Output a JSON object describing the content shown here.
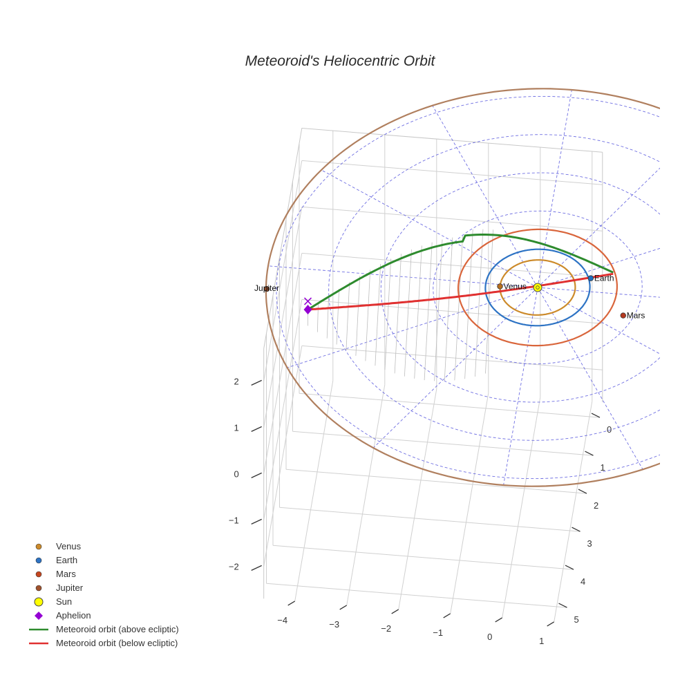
{
  "chart_data": {
    "type": "line",
    "title": "Meteoroid's Heliocentric Orbit",
    "projection": "3d",
    "axes": {
      "x": {
        "range": [
          -4.6,
          1.2
        ],
        "ticks": [
          -4,
          -3,
          -2,
          -1,
          0,
          1
        ]
      },
      "y": {
        "range": [
          -0.4,
          5.4
        ],
        "ticks": [
          0,
          1,
          2,
          3,
          4,
          5
        ]
      },
      "z": {
        "range": [
          -2.7,
          2.7
        ],
        "ticks": [
          -2,
          -1,
          0,
          1,
          2
        ]
      }
    },
    "grid": true,
    "ecliptic_reference_grid": {
      "color": "#5555dd",
      "style": "dashed"
    },
    "planets": [
      {
        "name": "Venus",
        "orbit_radius": 0.72,
        "color": "#cc8a2a",
        "marker_color": "#b86e1e",
        "show_label": true
      },
      {
        "name": "Earth",
        "orbit_radius": 1.0,
        "color": "#2d73c4",
        "marker_color": "#1f6fbf",
        "show_label": true
      },
      {
        "name": "Mars",
        "orbit_radius": 1.52,
        "color": "#d9653b",
        "marker_color": "#b5391f",
        "show_label": true
      },
      {
        "name": "Jupiter",
        "orbit_radius": 5.2,
        "color": "#b07f5e",
        "marker_color": "#8e4a2a",
        "show_label": true
      }
    ],
    "sun": {
      "name": "Sun",
      "color": "#ffff00"
    },
    "aphelion": {
      "name": "Aphelion",
      "color": "#9400d3",
      "marker": "diamond"
    },
    "meteoroid_orbit": {
      "above": {
        "name": "Meteoroid orbit (above ecliptic)",
        "color": "#2e8b2e"
      },
      "below": {
        "name": "Meteoroid orbit (below ecliptic)",
        "color": "#e03030"
      }
    },
    "legend": {
      "placement": "bottom-left",
      "entries": [
        {
          "name": "Venus",
          "symbol": "dot",
          "color": "#cc8a2a"
        },
        {
          "name": "Earth",
          "symbol": "dot",
          "color": "#2d73c4"
        },
        {
          "name": "Mars",
          "symbol": "dot",
          "color": "#c5461f"
        },
        {
          "name": "Jupiter",
          "symbol": "dot",
          "color": "#a0522d"
        },
        {
          "name": "Sun",
          "symbol": "sun",
          "color": "#ffff00"
        },
        {
          "name": "Aphelion",
          "symbol": "diamond",
          "color": "#9400d3"
        },
        {
          "name": "Meteoroid orbit (above ecliptic)",
          "symbol": "line",
          "color": "#2e8b2e"
        },
        {
          "name": "Meteoroid orbit (below ecliptic)",
          "symbol": "line",
          "color": "#e03030"
        }
      ]
    }
  }
}
